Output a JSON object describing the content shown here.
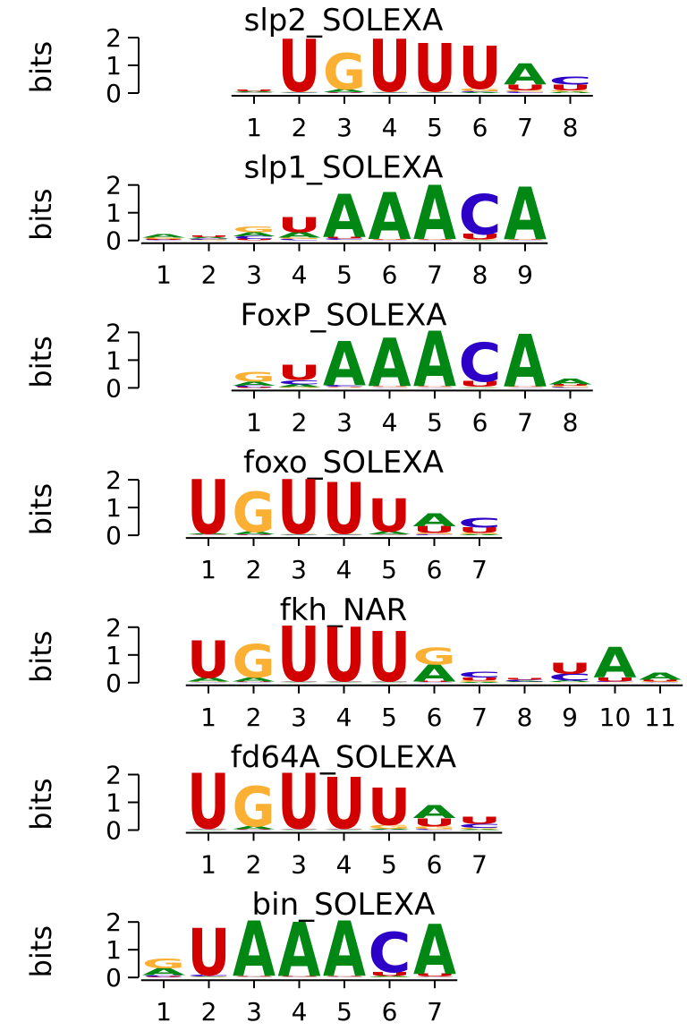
{
  "chart_data": [
    {
      "type": "logo",
      "title": "slp2_SOLEXA",
      "ylabel": "bits",
      "ylim": [
        0,
        2
      ],
      "yticks": [
        0,
        1,
        2
      ],
      "categories": [
        1,
        2,
        3,
        4,
        5,
        6,
        7,
        8
      ],
      "series": [
        {
          "name": "A",
          "color": "#008714",
          "values": [
            0.03,
            0.02,
            0.1,
            0.02,
            0.02,
            0.03,
            0.75,
            0.05
          ]
        },
        {
          "name": "C",
          "color": "#2d00c8",
          "values": [
            0.02,
            0.02,
            0.02,
            0.02,
            0.02,
            0.03,
            0.05,
            0.3
          ]
        },
        {
          "name": "G",
          "color": "#fbb033",
          "values": [
            0.02,
            0.02,
            1.3,
            0.02,
            0.02,
            0.1,
            0.05,
            0.05
          ]
        },
        {
          "name": "U",
          "color": "#d30000",
          "values": [
            0.05,
            1.9,
            0.02,
            1.9,
            1.75,
            1.55,
            0.2,
            0.2
          ]
        }
      ]
    },
    {
      "type": "logo",
      "title": "slp1_SOLEXA",
      "ylabel": "bits",
      "ylim": [
        0,
        2
      ],
      "yticks": [
        0,
        1,
        2
      ],
      "categories": [
        1,
        2,
        3,
        4,
        5,
        6,
        7,
        8,
        9
      ],
      "series": [
        {
          "name": "A",
          "color": "#008714",
          "values": [
            0.12,
            0.05,
            0.15,
            0.2,
            1.55,
            1.7,
            1.95,
            0.02,
            1.9
          ]
        },
        {
          "name": "C",
          "color": "#2d00c8",
          "values": [
            0.03,
            0.04,
            0.1,
            0.05,
            0.05,
            0.02,
            0.02,
            1.45,
            0.02
          ]
        },
        {
          "name": "G",
          "color": "#fbb033",
          "values": [
            0.05,
            0.03,
            0.2,
            0.05,
            0.02,
            0.02,
            0.02,
            0.02,
            0.02
          ]
        },
        {
          "name": "U",
          "color": "#d30000",
          "values": [
            0.03,
            0.05,
            0.05,
            0.55,
            0.05,
            0.02,
            0.02,
            0.2,
            0.02
          ]
        }
      ]
    },
    {
      "type": "logo",
      "title": "FoxP_SOLEXA",
      "ylabel": "bits",
      "ylim": [
        0,
        2
      ],
      "yticks": [
        0,
        1,
        2
      ],
      "categories": [
        1,
        2,
        3,
        4,
        5,
        6,
        7,
        8
      ],
      "series": [
        {
          "name": "A",
          "color": "#008714",
          "values": [
            0.15,
            0.1,
            1.6,
            1.75,
            2.0,
            0.02,
            1.9,
            0.2
          ]
        },
        {
          "name": "C",
          "color": "#2d00c8",
          "values": [
            0.05,
            0.15,
            0.05,
            0.02,
            0.02,
            1.4,
            0.02,
            0.03
          ]
        },
        {
          "name": "G",
          "color": "#fbb033",
          "values": [
            0.35,
            0.03,
            0.02,
            0.02,
            0.02,
            0.02,
            0.02,
            0.05
          ]
        },
        {
          "name": "U",
          "color": "#d30000",
          "values": [
            0.03,
            0.55,
            0.02,
            0.02,
            0.02,
            0.2,
            0.02,
            0.05
          ]
        }
      ]
    },
    {
      "type": "logo",
      "title": "foxo_SOLEXA",
      "ylabel": "bits",
      "ylim": [
        0,
        2
      ],
      "yticks": [
        0,
        1,
        2
      ],
      "categories": [
        1,
        2,
        3,
        4,
        5,
        6,
        7
      ],
      "series": [
        {
          "name": "A",
          "color": "#008714",
          "values": [
            0.03,
            0.1,
            0.02,
            0.02,
            0.1,
            0.45,
            0.03
          ]
        },
        {
          "name": "C",
          "color": "#2d00c8",
          "values": [
            0.02,
            0.02,
            0.02,
            0.02,
            0.02,
            0.03,
            0.35
          ]
        },
        {
          "name": "G",
          "color": "#fbb033",
          "values": [
            0.02,
            1.45,
            0.02,
            0.02,
            0.02,
            0.05,
            0.05
          ]
        },
        {
          "name": "U",
          "color": "#d30000",
          "values": [
            1.95,
            0.02,
            1.95,
            1.85,
            1.2,
            0.25,
            0.2
          ]
        }
      ]
    },
    {
      "type": "logo",
      "title": "fkh_NAR",
      "ylabel": "bits",
      "ylim": [
        0,
        2
      ],
      "yticks": [
        0,
        1,
        2
      ],
      "categories": [
        1,
        2,
        3,
        4,
        5,
        6,
        7,
        8,
        9,
        10,
        11
      ],
      "series": [
        {
          "name": "A",
          "color": "#008714",
          "values": [
            0.15,
            0.15,
            0.02,
            0.02,
            0.02,
            0.6,
            0.03,
            0.03,
            0.05,
            1.1,
            0.25
          ]
        },
        {
          "name": "C",
          "color": "#2d00c8",
          "values": [
            0.02,
            0.02,
            0.02,
            0.02,
            0.02,
            0.02,
            0.2,
            0.05,
            0.25,
            0.03,
            0.02
          ]
        },
        {
          "name": "G",
          "color": "#fbb033",
          "values": [
            0.02,
            1.2,
            0.02,
            0.02,
            0.02,
            0.6,
            0.05,
            0.02,
            0.02,
            0.02,
            0.03
          ]
        },
        {
          "name": "U",
          "color": "#d30000",
          "values": [
            1.35,
            0.02,
            2.0,
            1.95,
            1.8,
            0.03,
            0.1,
            0.05,
            0.4,
            0.15,
            0.05
          ]
        }
      ]
    },
    {
      "type": "logo",
      "title": "fd64A_SOLEXA",
      "ylabel": "bits",
      "ylim": [
        0,
        2
      ],
      "yticks": [
        0,
        1,
        2
      ],
      "categories": [
        1,
        2,
        3,
        4,
        5,
        6,
        7
      ],
      "series": [
        {
          "name": "A",
          "color": "#008714",
          "values": [
            0.02,
            0.1,
            0.02,
            0.02,
            0.03,
            0.45,
            0.03
          ]
        },
        {
          "name": "C",
          "color": "#2d00c8",
          "values": [
            0.02,
            0.02,
            0.02,
            0.02,
            0.02,
            0.03,
            0.15
          ]
        },
        {
          "name": "G",
          "color": "#fbb033",
          "values": [
            0.02,
            1.45,
            0.02,
            0.02,
            0.15,
            0.1,
            0.05
          ]
        },
        {
          "name": "U",
          "color": "#d30000",
          "values": [
            2.0,
            0.02,
            2.0,
            1.85,
            1.35,
            0.3,
            0.25
          ]
        }
      ]
    },
    {
      "type": "logo",
      "title": "bin_SOLEXA",
      "ylabel": "bits",
      "ylim": [
        0,
        2
      ],
      "yticks": [
        0,
        1,
        2
      ],
      "categories": [
        1,
        2,
        3,
        4,
        5,
        6,
        7
      ],
      "series": [
        {
          "name": "A",
          "color": "#008714",
          "values": [
            0.25,
            0.02,
            2.0,
            1.95,
            2.0,
            0.03,
            1.8
          ]
        },
        {
          "name": "C",
          "color": "#2d00c8",
          "values": [
            0.05,
            0.05,
            0.02,
            0.02,
            0.02,
            1.45,
            0.02
          ]
        },
        {
          "name": "G",
          "color": "#fbb033",
          "values": [
            0.35,
            0.02,
            0.02,
            0.02,
            0.02,
            0.02,
            0.02
          ]
        },
        {
          "name": "U",
          "color": "#d30000",
          "values": [
            0.03,
            1.7,
            0.02,
            0.02,
            0.02,
            0.15,
            0.1
          ]
        }
      ]
    }
  ]
}
